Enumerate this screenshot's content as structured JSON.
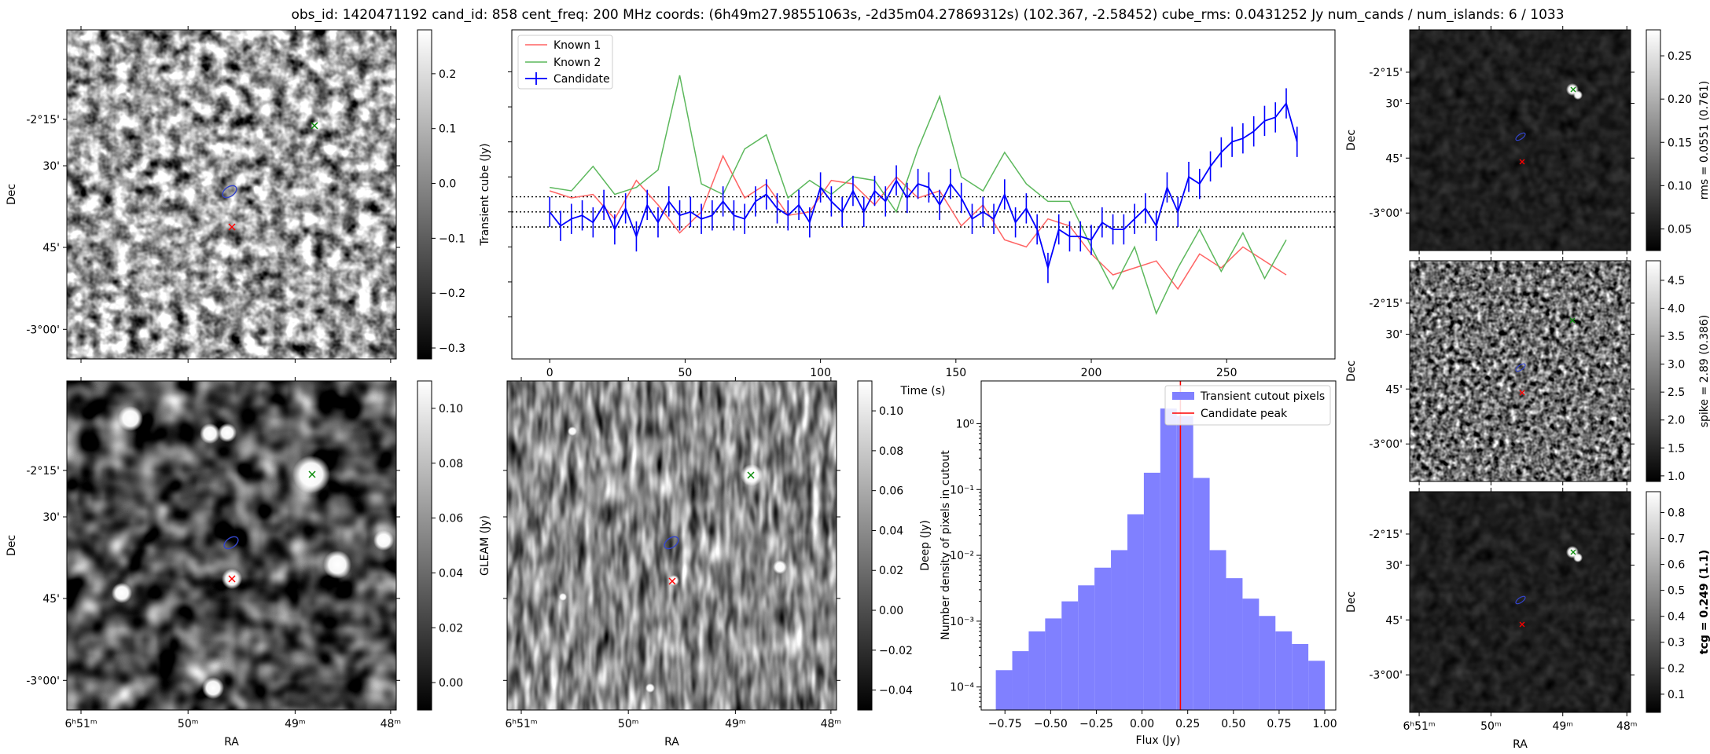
{
  "title": "obs_id: 1420471192 cand_id: 858 cent_freq: 200 MHz coords: (6h49m27.98551063s, -2d35m04.27869312s) (102.367, -2.58452) cube_rms: 0.0431252 Jy num_cands / num_islands: 6 / 1033",
  "axis_labels": {
    "ra": "RA",
    "dec": "Dec"
  },
  "ra_ticks": [
    "6ʰ51ᵐ",
    "50ᵐ",
    "49ᵐ",
    "48ᵐ"
  ],
  "dec_ticks": [
    "-2°15'",
    "30'",
    "45'",
    "-3°00'"
  ],
  "colors": {
    "candidate": "#0000ff",
    "known1": "#ff6464",
    "known2": "#5cb85c",
    "hist": "#8080ff",
    "peak": "#ff0000"
  },
  "images": {
    "transient": {
      "colorbar_label": "Transient cube (Jy)",
      "colorbar_ticks": [
        "0.2",
        "0.1",
        "0.0",
        "−0.1",
        "−0.2",
        "−0.3"
      ],
      "colorbar_range": [
        -0.32,
        0.28
      ]
    },
    "gleam": {
      "colorbar_label": "GLEAM (Jy)",
      "colorbar_ticks": [
        "0.10",
        "0.08",
        "0.06",
        "0.04",
        "0.02",
        "0.00"
      ],
      "colorbar_range": [
        -0.01,
        0.11
      ]
    },
    "deep": {
      "colorbar_label": "Deep (Jy)",
      "colorbar_ticks": [
        "0.10",
        "0.08",
        "0.06",
        "0.04",
        "0.02",
        "0.00",
        "−0.02",
        "−0.04"
      ],
      "colorbar_range": [
        -0.05,
        0.115
      ]
    },
    "rms": {
      "colorbar_label": "rms = 0.0551 (0.761)",
      "colorbar_ticks": [
        "0.25",
        "0.20",
        "0.15",
        "0.10",
        "0.05"
      ],
      "colorbar_range": [
        0.025,
        0.28
      ]
    },
    "spike": {
      "colorbar_label": "spike = 2.89 (0.386)",
      "colorbar_ticks": [
        "4.5",
        "4.0",
        "3.5",
        "3.0",
        "2.5",
        "2.0",
        "1.5",
        "1.0"
      ],
      "colorbar_range": [
        0.9,
        4.85
      ]
    },
    "tcg": {
      "colorbar_label": "tcg = 0.249 (1.1)",
      "colorbar_ticks": [
        "0.8",
        "0.7",
        "0.6",
        "0.5",
        "0.4",
        "0.3",
        "0.2",
        "0.1"
      ],
      "colorbar_range": [
        0.03,
        0.88
      ]
    }
  },
  "chart_data": [
    {
      "type": "line",
      "xlabel": "Time (s)",
      "ylabel": "",
      "xlim": [
        -14,
        290
      ],
      "ylim": [
        -0.42,
        0.52
      ],
      "xticks": [
        0,
        50,
        100,
        150,
        200,
        250
      ],
      "hlines": [
        0.0431,
        0.0,
        -0.0431
      ],
      "legend": {
        "position": "top-left",
        "labels": [
          "Known 1",
          "Known 2",
          "Candidate"
        ]
      },
      "series": [
        {
          "name": "Known 1",
          "x": [
            0,
            8,
            16,
            24,
            32,
            40,
            48,
            56,
            64,
            72,
            80,
            88,
            96,
            104,
            112,
            120,
            128,
            136,
            144,
            152,
            160,
            168,
            176,
            184,
            192,
            200,
            208,
            216,
            224,
            232,
            240,
            248,
            256,
            264,
            272
          ],
          "y": [
            0.06,
            0.04,
            0.05,
            -0.02,
            0.09,
            0.02,
            -0.06,
            0.0,
            0.16,
            0.04,
            0.08,
            -0.01,
            0.0,
            0.09,
            0.08,
            0.02,
            0.1,
            0.04,
            0.06,
            -0.04,
            0.02,
            -0.08,
            -0.1,
            -0.02,
            -0.04,
            -0.12,
            -0.18,
            -0.16,
            -0.14,
            -0.22,
            -0.12,
            -0.16,
            -0.1,
            -0.14,
            -0.18
          ]
        },
        {
          "name": "Known 2",
          "x": [
            0,
            8,
            16,
            24,
            32,
            40,
            48,
            56,
            64,
            72,
            80,
            88,
            96,
            104,
            112,
            120,
            128,
            136,
            144,
            152,
            160,
            168,
            176,
            184,
            192,
            200,
            208,
            216,
            224,
            232,
            240,
            248,
            256,
            264,
            272
          ],
          "y": [
            0.07,
            0.06,
            0.13,
            0.05,
            0.07,
            0.12,
            0.39,
            0.08,
            0.05,
            0.18,
            0.22,
            0.04,
            0.09,
            0.05,
            0.1,
            0.09,
            0.0,
            0.18,
            0.33,
            0.1,
            0.06,
            0.17,
            0.08,
            0.03,
            0.03,
            -0.1,
            -0.22,
            -0.1,
            -0.29,
            -0.16,
            -0.05,
            -0.17,
            -0.06,
            -0.19,
            -0.08
          ]
        },
        {
          "name": "Candidate",
          "x": [
            0,
            4,
            8,
            12,
            16,
            20,
            24,
            28,
            32,
            36,
            40,
            44,
            48,
            52,
            56,
            60,
            64,
            68,
            72,
            76,
            80,
            84,
            88,
            92,
            96,
            100,
            104,
            108,
            112,
            116,
            120,
            124,
            128,
            132,
            136,
            140,
            144,
            148,
            152,
            156,
            160,
            164,
            168,
            172,
            176,
            180,
            184,
            188,
            192,
            196,
            200,
            204,
            208,
            212,
            216,
            220,
            224,
            228,
            232,
            236,
            240,
            244,
            248,
            252,
            256,
            260,
            264,
            268,
            272,
            276
          ],
          "y": [
            0.0,
            -0.04,
            -0.02,
            -0.01,
            -0.03,
            0.02,
            -0.05,
            0.01,
            -0.07,
            0.02,
            -0.03,
            0.03,
            -0.01,
            0.0,
            -0.02,
            -0.01,
            0.03,
            -0.01,
            -0.02,
            0.03,
            0.05,
            0.01,
            -0.01,
            0.02,
            -0.03,
            0.07,
            0.03,
            0.0,
            0.06,
            0.0,
            0.06,
            0.03,
            0.09,
            0.04,
            0.08,
            0.07,
            0.02,
            0.08,
            0.04,
            -0.02,
            0.0,
            -0.02,
            0.05,
            -0.03,
            0.01,
            -0.05,
            -0.16,
            -0.05,
            -0.07,
            -0.07,
            -0.08,
            -0.03,
            -0.05,
            -0.05,
            -0.02,
            0.01,
            -0.04,
            0.07,
            0.0,
            0.1,
            0.08,
            0.13,
            0.17,
            0.2,
            0.21,
            0.23,
            0.26,
            0.27,
            0.31,
            0.2
          ]
        }
      ]
    },
    {
      "type": "bar",
      "xlabel": "Flux (Jy)",
      "ylabel": "Number density of pixels in cutout",
      "yscale": "log",
      "xlim": [
        -0.88,
        1.06
      ],
      "ylim_log10": [
        -4.35,
        0.65
      ],
      "xticks": [
        "−0.75",
        "−0.50",
        "−0.25",
        "0.00",
        "0.25",
        "0.50",
        "0.75",
        "1.00"
      ],
      "xtick_values": [
        -0.75,
        -0.5,
        -0.25,
        0.0,
        0.25,
        0.5,
        0.75,
        1.0
      ],
      "yticks": [
        "10⁰",
        "10⁻¹",
        "10⁻²",
        "10⁻³",
        "10⁻⁴"
      ],
      "ytick_exponents": [
        0,
        -1,
        -2,
        -3,
        -4
      ],
      "bin_edges": [
        -0.8,
        -0.71,
        -0.62,
        -0.53,
        -0.44,
        -0.35,
        -0.26,
        -0.17,
        -0.08,
        0.01,
        0.1,
        0.19,
        0.28,
        0.37,
        0.46,
        0.55,
        0.64,
        0.73,
        0.82,
        0.91,
        1.0
      ],
      "values": [
        0.00018,
        0.00035,
        0.0007,
        0.0011,
        0.002,
        0.0035,
        0.0065,
        0.012,
        0.042,
        0.18,
        1.7,
        1.3,
        0.15,
        0.012,
        0.0045,
        0.0022,
        0.0012,
        0.0007,
        0.00045,
        0.00025
      ],
      "vline": 0.21,
      "legend": {
        "position": "top-right",
        "labels": [
          "Transient cutout pixels",
          "Candidate peak"
        ]
      }
    }
  ]
}
